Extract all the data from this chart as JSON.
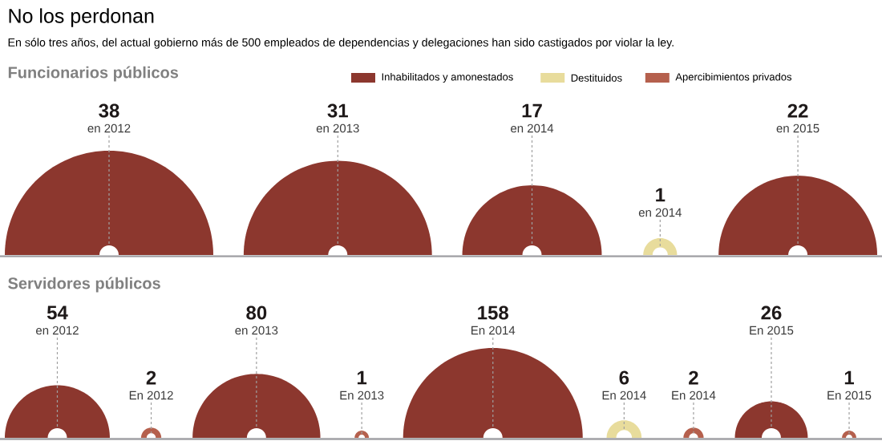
{
  "chart_data": [
    {
      "type": "other",
      "title": "No los perdonan",
      "subtitle": "En sólo tres años, del actual gobierno más de 500 empleados de dependencias y delegaciones han sido castigados por violar la ley.",
      "annotations": [
        "Funcionarios públicos"
      ],
      "categories": [
        "en 2012",
        "en 2013",
        "en 2014",
        "en 2014",
        "en 2015"
      ],
      "data_labels": true,
      "legend": "top right",
      "series": [
        {
          "name": "Inhabilitados y amonestados",
          "color": "#8c372e",
          "values": [
            38,
            31,
            17,
            null,
            22
          ]
        },
        {
          "name": "Destituidos",
          "color": "#e8dc9c",
          "values": [
            null,
            null,
            null,
            1,
            null
          ]
        },
        {
          "name": "Apercibimientos privados",
          "color": "#b5604d",
          "values": [
            null,
            null,
            null,
            null,
            null
          ]
        }
      ]
    },
    {
      "type": "other",
      "annotations": [
        "Servidores públicos"
      ],
      "categories": [
        "en 2012",
        "En 2012",
        "en 2013",
        "En 2013",
        "En 2014",
        "En 2014",
        "En 2014",
        "En 2015",
        "En 2015"
      ],
      "data_labels": true,
      "series": [
        {
          "color": "#8c372e",
          "values": [
            54,
            null,
            80,
            null,
            158,
            null,
            null,
            26,
            null
          ]
        },
        {
          "color": "#e8dc9c",
          "values": [
            null,
            null,
            null,
            null,
            null,
            6,
            null,
            null,
            null
          ]
        },
        {
          "color": "#b5604d",
          "values": [
            null,
            2,
            null,
            1,
            null,
            null,
            2,
            null,
            1
          ]
        }
      ]
    }
  ]
}
